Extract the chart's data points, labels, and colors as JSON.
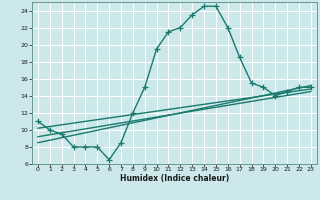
{
  "title": "",
  "xlabel": "Humidex (Indice chaleur)",
  "xlim": [
    -0.5,
    23.5
  ],
  "ylim": [
    6,
    25
  ],
  "yticks": [
    6,
    8,
    10,
    12,
    14,
    16,
    18,
    20,
    22,
    24
  ],
  "xticks": [
    0,
    1,
    2,
    3,
    4,
    5,
    6,
    7,
    8,
    9,
    10,
    11,
    12,
    13,
    14,
    15,
    16,
    17,
    18,
    19,
    20,
    21,
    22,
    23
  ],
  "bg_color": "#cce8ea",
  "grid_color": "#ffffff",
  "line_color": "#1a7a6e",
  "main_curve_x": [
    0,
    1,
    2,
    3,
    4,
    5,
    6,
    7,
    8,
    9,
    10,
    11,
    12,
    13,
    14,
    15,
    16,
    17,
    18,
    19,
    20,
    21,
    22,
    23
  ],
  "main_curve_y": [
    11.0,
    10.0,
    9.5,
    8.0,
    8.0,
    8.0,
    6.5,
    8.5,
    12.0,
    15.0,
    19.5,
    21.5,
    22.0,
    23.5,
    24.5,
    24.5,
    22.0,
    18.5,
    15.5,
    15.0,
    14.0,
    14.5,
    15.0,
    15.0
  ],
  "reg_line1_x": [
    0,
    23
  ],
  "reg_line1_y": [
    8.5,
    15.2
  ],
  "reg_line2_x": [
    0,
    23
  ],
  "reg_line2_y": [
    9.2,
    14.5
  ],
  "reg_line3_x": [
    0,
    23
  ],
  "reg_line3_y": [
    10.2,
    14.8
  ],
  "line_width": 1.0
}
